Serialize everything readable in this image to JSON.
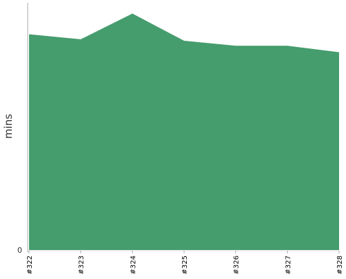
{
  "chart_data": {
    "type": "area",
    "title": "",
    "xlabel": "",
    "ylabel": "mins",
    "categories": [
      "#322",
      "#323",
      "#324",
      "#325",
      "#326",
      "#327",
      "#328"
    ],
    "series": [
      {
        "values": [
          30.1,
          29.4,
          33.0,
          29.2,
          28.5,
          28.5,
          27.6
        ]
      }
    ],
    "ylim": [
      0,
      34.5
    ],
    "y_tick_labels": [
      "0"
    ],
    "grid": false,
    "legend": "none",
    "colors": {
      "fill": "#459c6d",
      "axis": "#aaaaaa",
      "text": "#333333"
    }
  }
}
